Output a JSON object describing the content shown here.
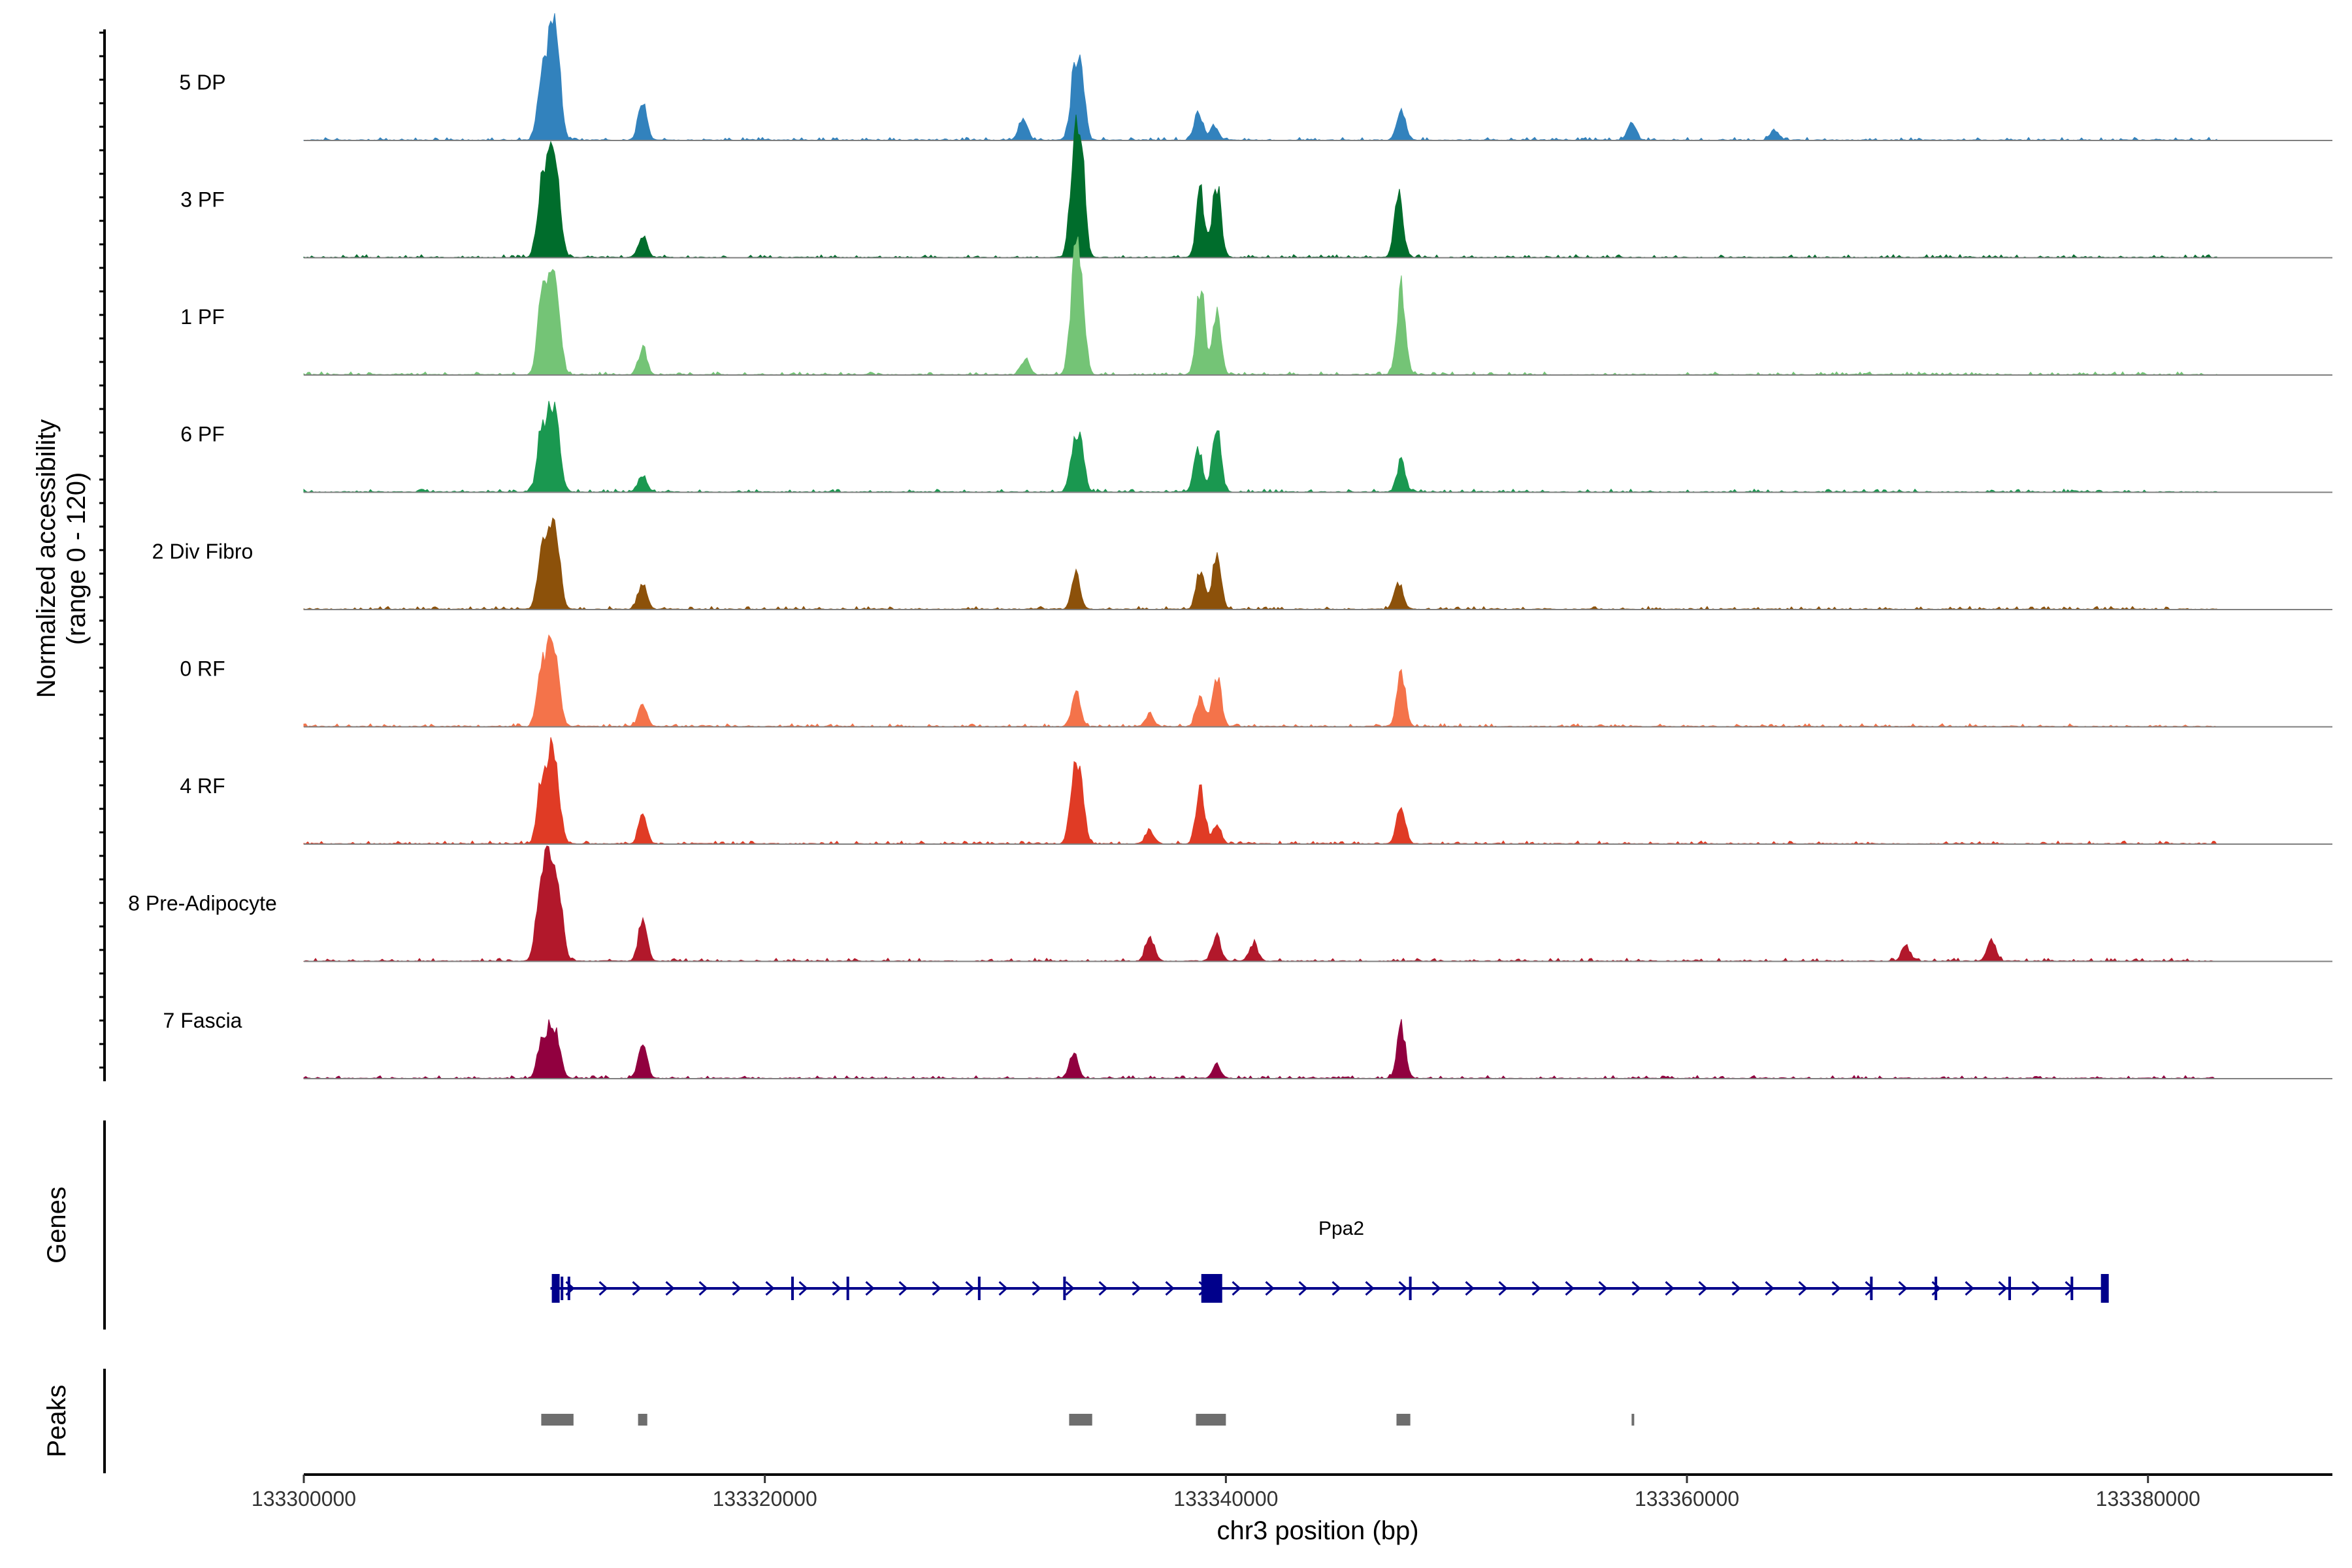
{
  "chart_data": {
    "type": "area",
    "title": "",
    "ylabel": "Normalized accessibility\n(range 0 - 120)",
    "y_range": [
      0,
      120
    ],
    "xlabel": "chr3 position (bp)",
    "x_range": [
      133300000,
      133388000
    ],
    "x_ticks": [
      133300000,
      133320000,
      133340000,
      133360000,
      133380000
    ],
    "x_tick_labels": [
      "133300000",
      "133320000",
      "133340000",
      "133360000",
      "133380000"
    ],
    "tracks": [
      {
        "name": "5 DP",
        "color": "#3282bd",
        "peaks": [
          {
            "pos": 133310300,
            "height": 48
          },
          {
            "pos": 133310700,
            "height": 75
          },
          {
            "pos": 133311000,
            "height": 60
          },
          {
            "pos": 133314700,
            "height": 30
          },
          {
            "pos": 133331200,
            "height": 18
          },
          {
            "pos": 133333400,
            "height": 42
          },
          {
            "pos": 133333700,
            "height": 52
          },
          {
            "pos": 133338800,
            "height": 22
          },
          {
            "pos": 133339500,
            "height": 12
          },
          {
            "pos": 133347600,
            "height": 25
          },
          {
            "pos": 133357600,
            "height": 15
          },
          {
            "pos": 133363800,
            "height": 8
          }
        ]
      },
      {
        "name": "3 PF",
        "color": "#006d2c",
        "peaks": [
          {
            "pos": 133310300,
            "height": 55
          },
          {
            "pos": 133310700,
            "height": 72
          },
          {
            "pos": 133311000,
            "height": 50
          },
          {
            "pos": 133314700,
            "height": 18
          },
          {
            "pos": 133333400,
            "height": 70
          },
          {
            "pos": 133333700,
            "height": 85
          },
          {
            "pos": 133338900,
            "height": 52
          },
          {
            "pos": 133339600,
            "height": 60
          },
          {
            "pos": 133347500,
            "height": 54
          }
        ]
      },
      {
        "name": "1 PF",
        "color": "#74c476",
        "peaks": [
          {
            "pos": 133310300,
            "height": 62
          },
          {
            "pos": 133310700,
            "height": 68
          },
          {
            "pos": 133311000,
            "height": 45
          },
          {
            "pos": 133314700,
            "height": 22
          },
          {
            "pos": 133331300,
            "height": 12
          },
          {
            "pos": 133333400,
            "height": 70
          },
          {
            "pos": 133333700,
            "height": 78
          },
          {
            "pos": 133338900,
            "height": 72
          },
          {
            "pos": 133339600,
            "height": 48
          },
          {
            "pos": 133347600,
            "height": 72
          }
        ]
      },
      {
        "name": "6 PF",
        "color": "#1a9850",
        "peaks": [
          {
            "pos": 133310300,
            "height": 50
          },
          {
            "pos": 133310700,
            "height": 55
          },
          {
            "pos": 133311000,
            "height": 40
          },
          {
            "pos": 133314700,
            "height": 14
          },
          {
            "pos": 133333400,
            "height": 30
          },
          {
            "pos": 133333700,
            "height": 35
          },
          {
            "pos": 133338800,
            "height": 35
          },
          {
            "pos": 133339600,
            "height": 55
          },
          {
            "pos": 133347600,
            "height": 25
          }
        ]
      },
      {
        "name": "2 Div Fibro",
        "color": "#8c510a",
        "peaks": [
          {
            "pos": 133310300,
            "height": 45
          },
          {
            "pos": 133310700,
            "height": 62
          },
          {
            "pos": 133311000,
            "height": 40
          },
          {
            "pos": 133314700,
            "height": 22
          },
          {
            "pos": 133333500,
            "height": 28
          },
          {
            "pos": 133338900,
            "height": 32
          },
          {
            "pos": 133339600,
            "height": 45
          },
          {
            "pos": 133347500,
            "height": 22
          }
        ]
      },
      {
        "name": "0 RF",
        "color": "#f4734a",
        "peaks": [
          {
            "pos": 133310300,
            "height": 48
          },
          {
            "pos": 133310700,
            "height": 60
          },
          {
            "pos": 133311000,
            "height": 30
          },
          {
            "pos": 133314700,
            "height": 18
          },
          {
            "pos": 133333500,
            "height": 28
          },
          {
            "pos": 133336700,
            "height": 10
          },
          {
            "pos": 133338900,
            "height": 25
          },
          {
            "pos": 133339600,
            "height": 42
          },
          {
            "pos": 133347600,
            "height": 45
          }
        ]
      },
      {
        "name": "4 RF",
        "color": "#e03b25",
        "peaks": [
          {
            "pos": 133310300,
            "height": 50
          },
          {
            "pos": 133310700,
            "height": 62
          },
          {
            "pos": 133311000,
            "height": 38
          },
          {
            "pos": 133314700,
            "height": 22
          },
          {
            "pos": 133333400,
            "height": 52
          },
          {
            "pos": 133333700,
            "height": 40
          },
          {
            "pos": 133336700,
            "height": 10
          },
          {
            "pos": 133338900,
            "height": 45
          },
          {
            "pos": 133339600,
            "height": 15
          },
          {
            "pos": 133347600,
            "height": 32
          }
        ]
      },
      {
        "name": "8 Pre-Adipocyte",
        "color": "#b2182b",
        "peaks": [
          {
            "pos": 133310200,
            "height": 40
          },
          {
            "pos": 133310500,
            "height": 60
          },
          {
            "pos": 133310800,
            "height": 55
          },
          {
            "pos": 133311100,
            "height": 42
          },
          {
            "pos": 133314700,
            "height": 35
          },
          {
            "pos": 133336700,
            "height": 20
          },
          {
            "pos": 133339600,
            "height": 20
          },
          {
            "pos": 133341200,
            "height": 15
          },
          {
            "pos": 133369500,
            "height": 12
          },
          {
            "pos": 133373200,
            "height": 18
          }
        ]
      },
      {
        "name": "7 Fascia",
        "color": "#91003f",
        "peaks": [
          {
            "pos": 133310300,
            "height": 30
          },
          {
            "pos": 133310700,
            "height": 35
          },
          {
            "pos": 133311000,
            "height": 25
          },
          {
            "pos": 133314700,
            "height": 28
          },
          {
            "pos": 133333400,
            "height": 20
          },
          {
            "pos": 133339600,
            "height": 10
          },
          {
            "pos": 133347600,
            "height": 42
          }
        ]
      }
    ],
    "genes_label": "Genes",
    "gene": {
      "name": "Ppa2",
      "color": "#00008b",
      "strand": "+",
      "start": 133310700,
      "end": 133378100,
      "exons": [
        133310900,
        133311200,
        133311500,
        133321200,
        133323600,
        133329300,
        133333000,
        133339500,
        133348000,
        133368000,
        133370800,
        133374000,
        133376700,
        133378100
      ]
    },
    "peaks_label": "Peaks",
    "peak_regions": [
      {
        "start": 133310300,
        "end": 133311700
      },
      {
        "start": 133314500,
        "end": 133314900
      },
      {
        "start": 133333200,
        "end": 133334200
      },
      {
        "start": 133338700,
        "end": 133340000
      },
      {
        "start": 133347400,
        "end": 133348000
      },
      {
        "start": 133357600,
        "end": 133357700
      }
    ]
  }
}
